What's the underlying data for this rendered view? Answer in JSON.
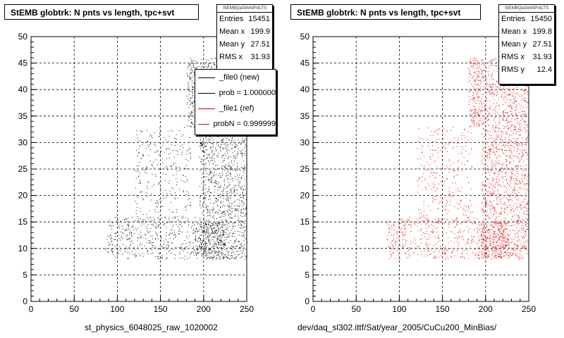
{
  "left": {
    "title": "StEMB globtrk: N pnts vs length, tpc+svt",
    "stats_header": "StEMBQaGtrkNPntLTS",
    "stats": [
      {
        "label": "Entries",
        "value": "15451"
      },
      {
        "label": "Mean x",
        "value": "199.9"
      },
      {
        "label": "Mean y",
        "value": "27.51"
      },
      {
        "label": "RMS x",
        "value": "31.93"
      }
    ],
    "legend": [
      {
        "text": "_file0 (new)",
        "color": "#000000"
      },
      {
        "text": "prob = 1.000000",
        "color": "#000000"
      },
      {
        "text": "_file1 (ref)",
        "color": "#e00000"
      },
      {
        "text": "probN = 0.999999",
        "color": "#e00000"
      }
    ],
    "xcaption": "st_physics_6048025_raw_1020002"
  },
  "right": {
    "title": "StEMB globtrk: N pnts vs length, tpc+svt",
    "stats_header": "StEMBQaGtrkNPntLTS",
    "stats": [
      {
        "label": "Entries",
        "value": "15450"
      },
      {
        "label": "Mean x",
        "value": "199.8"
      },
      {
        "label": "Mean y",
        "value": "27.51"
      },
      {
        "label": "RMS x",
        "value": "31.93"
      },
      {
        "label": "RMS y",
        "value": "12.4"
      }
    ],
    "xcaption": "dev/daq_sl302.ittf/Sat/year_2005/CuCu200_MinBias/"
  },
  "chart_data": [
    {
      "type": "scatter",
      "title": "StEMB globtrk: N pnts vs length, tpc+svt",
      "xlabel": "st_physics_6048025_raw_1020002",
      "ylabel": "",
      "xlim": [
        0,
        250
      ],
      "ylim": [
        0,
        50
      ],
      "xticks": [
        0,
        50,
        100,
        150,
        200,
        250
      ],
      "yticks": [
        0,
        5,
        10,
        15,
        20,
        25,
        30,
        35,
        40,
        45,
        50
      ],
      "grid": true,
      "color": "#000000",
      "entries": 15451,
      "mean_x": 199.9,
      "mean_y": 27.51,
      "rms_x": 31.93,
      "density_regions": [
        {
          "x": [
            180,
            195
          ],
          "y": [
            33,
            46
          ],
          "weight": 3.0
        },
        {
          "x": [
            195,
            250
          ],
          "y": [
            8,
            46
          ],
          "weight": 2.2
        },
        {
          "x": [
            190,
            225
          ],
          "y": [
            8,
            15
          ],
          "weight": 3.2
        },
        {
          "x": [
            85,
            190
          ],
          "y": [
            8,
            16
          ],
          "weight": 1.3
        },
        {
          "x": [
            120,
            185
          ],
          "y": [
            15,
            33
          ],
          "weight": 0.7
        }
      ]
    },
    {
      "type": "scatter",
      "title": "StEMB globtrk: N pnts vs length, tpc+svt",
      "xlabel": "dev/daq_sl302.ittf/Sat/year_2005/CuCu200_MinBias/",
      "ylabel": "",
      "xlim": [
        0,
        250
      ],
      "ylim": [
        0,
        50
      ],
      "xticks": [
        0,
        50,
        100,
        150,
        200,
        250
      ],
      "yticks": [
        0,
        5,
        10,
        15,
        20,
        25,
        30,
        35,
        40,
        45,
        50
      ],
      "grid": true,
      "color": "#e00000",
      "entries": 15450,
      "mean_x": 199.8,
      "mean_y": 27.51,
      "rms_x": 31.93,
      "rms_y": 12.4,
      "density_regions": [
        {
          "x": [
            180,
            195
          ],
          "y": [
            33,
            46
          ],
          "weight": 3.0
        },
        {
          "x": [
            195,
            250
          ],
          "y": [
            8,
            46
          ],
          "weight": 2.2
        },
        {
          "x": [
            190,
            225
          ],
          "y": [
            8,
            15
          ],
          "weight": 3.2
        },
        {
          "x": [
            85,
            190
          ],
          "y": [
            8,
            16
          ],
          "weight": 1.3
        },
        {
          "x": [
            120,
            185
          ],
          "y": [
            15,
            33
          ],
          "weight": 0.7
        }
      ]
    }
  ]
}
